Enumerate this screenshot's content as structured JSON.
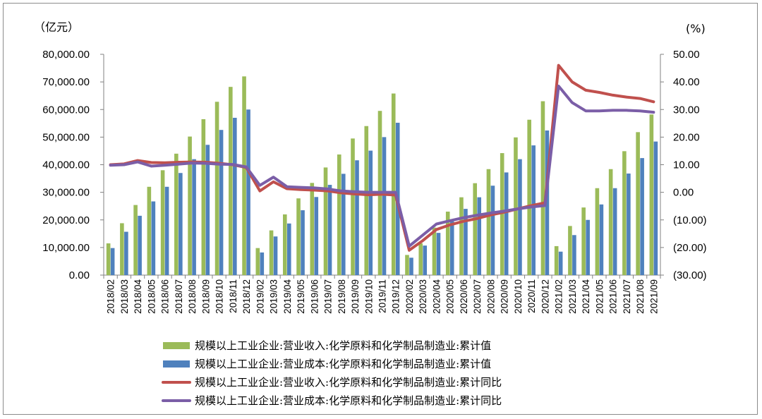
{
  "chart_data": {
    "type": "bar",
    "left_unit": "（亿元）",
    "right_unit": "(%)",
    "left_ylim": [
      0,
      80000
    ],
    "right_ylim": [
      -30,
      50
    ],
    "left_ticks": [
      "80,000.00",
      "70,000.00",
      "60,000.00",
      "50,000.00",
      "40,000.00",
      "30,000.00",
      "20,000.00",
      "10,000.00",
      "0.00"
    ],
    "right_ticks": [
      "50.00",
      "40.00",
      "30.00",
      "20.00",
      "10.00",
      "0.00",
      "(10.00)",
      "(20.00)",
      "(30.00)"
    ],
    "right_tick_values": [
      50,
      40,
      30,
      20,
      10,
      0,
      -10,
      -20,
      -30
    ],
    "negative_tick_color": "#ff0000",
    "categories": [
      "2018/02",
      "2018/03",
      "2018/04",
      "2018/05",
      "2018/06",
      "2018/07",
      "2018/08",
      "2018/09",
      "2018/10",
      "2018/11",
      "2018/12",
      "2019/02",
      "2019/03",
      "2019/04",
      "2019/05",
      "2019/06",
      "2019/07",
      "2019/08",
      "2019/09",
      "2019/10",
      "2019/11",
      "2019/12",
      "2020/02",
      "2020/03",
      "2020/04",
      "2020/05",
      "2020/06",
      "2020/07",
      "2020/08",
      "2020/09",
      "2020/10",
      "2020/11",
      "2020/12",
      "2021/02",
      "2021/03",
      "2021/04",
      "2021/05",
      "2021/06",
      "2021/07",
      "2021/08",
      "2021/09"
    ],
    "series": [
      {
        "name": "规模以上工业企业:营业收入:化学原料和化学制品制造业:累计值",
        "type": "bar",
        "axis": "left",
        "color": "#9bbb59",
        "values": [
          11500,
          18800,
          25400,
          32000,
          38000,
          44000,
          50200,
          56500,
          62800,
          68200,
          72000,
          9800,
          16200,
          22000,
          27800,
          33400,
          39000,
          43700,
          49500,
          54000,
          59500,
          65800,
          7300,
          11500,
          17200,
          23000,
          28200,
          33300,
          38400,
          44200,
          49900,
          56300,
          63000,
          10500,
          17800,
          24500,
          31500,
          38400,
          44900,
          51800,
          58200
        ]
      },
      {
        "name": "规模以上工业企业:营业成本:化学原料和化学制品制造业:累计值",
        "type": "bar",
        "axis": "left",
        "color": "#4f81bd",
        "values": [
          9800,
          15700,
          21500,
          26700,
          32000,
          37000,
          42000,
          47200,
          52600,
          57000,
          60000,
          8200,
          14000,
          18700,
          23500,
          28300,
          32700,
          36700,
          41600,
          45100,
          50000,
          55200,
          6300,
          10700,
          15300,
          19500,
          24000,
          28200,
          32400,
          37200,
          42000,
          47000,
          52400,
          8500,
          14500,
          20000,
          25600,
          31500,
          36800,
          42400,
          48400
        ]
      },
      {
        "name": "规模以上工业企业:营业收入:化学原料和化学制品制造业:累计同比",
        "type": "line",
        "axis": "right",
        "color": "#c0504d",
        "values": [
          10.0,
          10.3,
          11.5,
          10.8,
          10.7,
          10.9,
          11.0,
          10.9,
          10.5,
          10.0,
          9.0,
          0.5,
          3.8,
          1.3,
          1.0,
          0.8,
          0.5,
          -0.2,
          -0.6,
          -0.9,
          -0.7,
          -1.0,
          -21.0,
          -17.5,
          -13.5,
          -11.8,
          -10.5,
          -9.5,
          -8.2,
          -7.2,
          -6.0,
          -4.8,
          -3.8,
          46.0,
          40.0,
          37.0,
          36.2,
          35.2,
          34.5,
          34.0,
          32.8
        ]
      },
      {
        "name": "规模以上工业企业:营业成本:化学原料和化学制品制造业:累计同比",
        "type": "line",
        "axis": "right",
        "color": "#7b5ea7",
        "values": [
          9.8,
          10.0,
          11.0,
          9.5,
          9.8,
          10.2,
          10.6,
          10.5,
          10.2,
          10.1,
          9.2,
          2.5,
          5.5,
          2.0,
          1.8,
          1.6,
          1.2,
          0.5,
          0.2,
          0.0,
          0.0,
          0.0,
          -19.5,
          -15.5,
          -11.5,
          -10.3,
          -9.2,
          -8.3,
          -7.5,
          -6.8,
          -6.0,
          -5.3,
          -4.8,
          38.5,
          32.5,
          29.5,
          29.5,
          29.7,
          29.7,
          29.5,
          29.0
        ]
      }
    ]
  }
}
